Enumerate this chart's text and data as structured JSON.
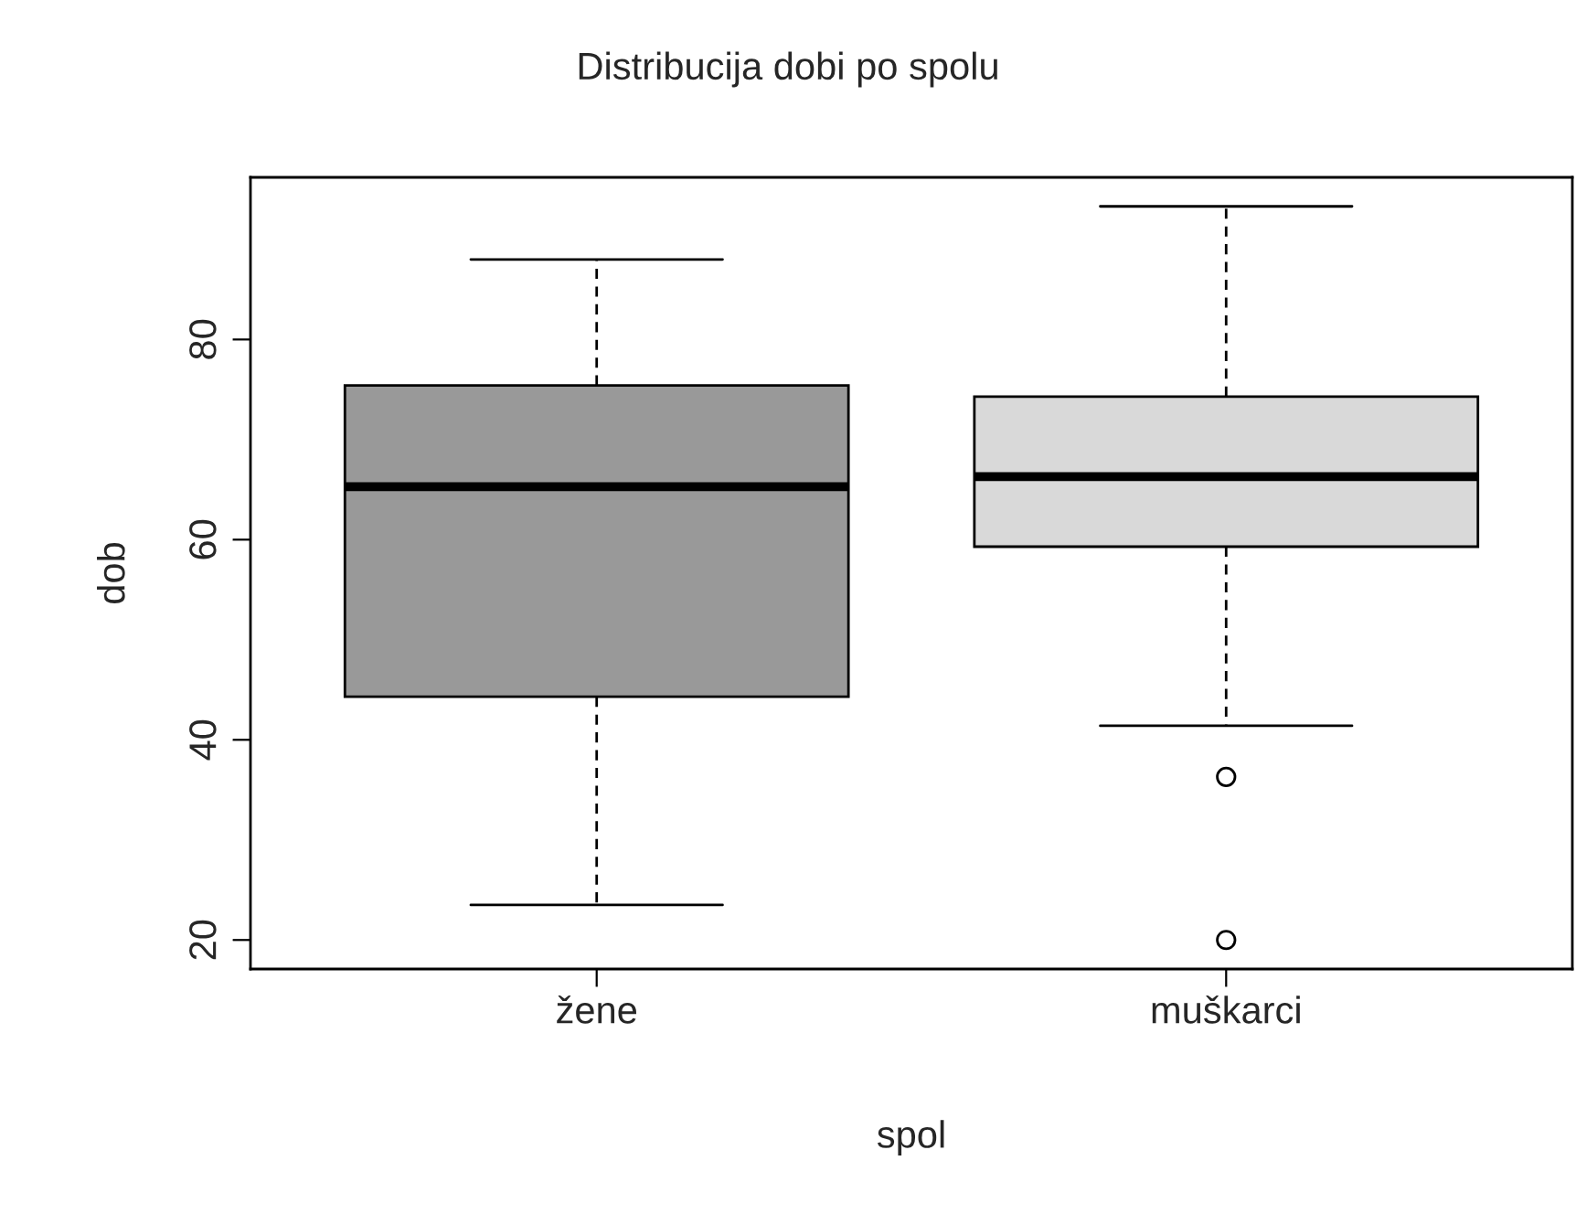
{
  "chart_data": {
    "type": "box",
    "title": "Distribucija dobi po spolu",
    "xlabel": "spol",
    "ylabel": "dob",
    "categories": [
      "žene",
      "muškarci"
    ],
    "colors": [
      "#999999",
      "#d9d9d9"
    ],
    "boxes": [
      {
        "low": 23.5,
        "q1": 44.3,
        "median": 65.3,
        "q3": 75.4,
        "high": 88.0
      },
      {
        "low": 41.4,
        "q1": 59.3,
        "median": 66.3,
        "q3": 74.3,
        "high": 93.3,
        "outliers": [
          36.3,
          20.0
        ]
      }
    ],
    "ylim": [
      17.1,
      96.2
    ],
    "yticks": [
      20,
      40,
      60,
      80
    ],
    "grid": false,
    "legend": false
  }
}
